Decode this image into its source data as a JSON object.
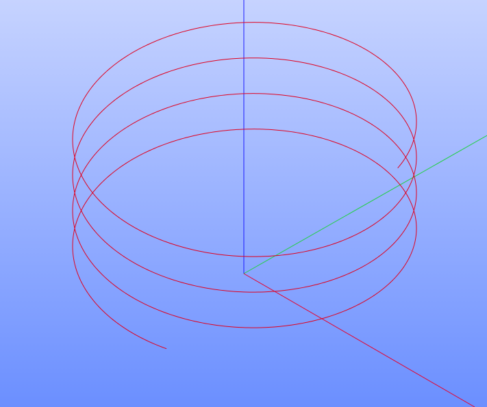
{
  "viewport": {
    "background_top": "#c6d3ff",
    "background_bottom": "#6b8fff"
  },
  "axes": {
    "x": {
      "color": "#e8002a"
    },
    "y": {
      "color": "#22d044"
    },
    "z": {
      "color": "#1a1aff"
    }
  },
  "helix": {
    "color": "#e0001e",
    "turns": 3.75
  }
}
